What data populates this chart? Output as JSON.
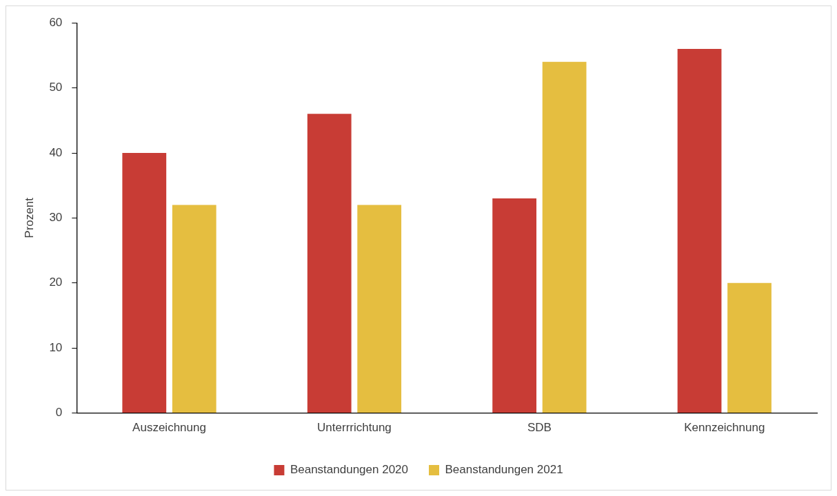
{
  "chart_data": {
    "type": "bar",
    "ylabel": "Prozent",
    "categories": [
      "Auszeichnung",
      "Unterrrichtung",
      "SDB",
      "Kennzeichnung"
    ],
    "series": [
      {
        "name": "Beanstandungen 2020",
        "color": "#c83c35",
        "values": [
          40,
          46,
          33,
          56
        ]
      },
      {
        "name": "Beanstandungen 2021",
        "color": "#e5be40",
        "values": [
          32,
          32,
          54,
          20
        ]
      }
    ],
    "ylim": [
      0,
      60
    ],
    "yticks": [
      0,
      10,
      20,
      30,
      40,
      50,
      60
    ],
    "grid": false,
    "legend": "bottom"
  }
}
